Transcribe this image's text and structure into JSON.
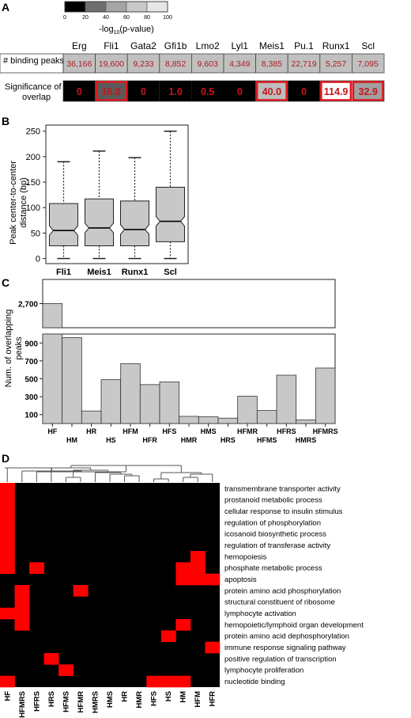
{
  "panel_labels": {
    "a": "A",
    "b": "B",
    "c": "C",
    "d": "D"
  },
  "colorbar": {
    "ticks": [
      "0",
      "20",
      "40",
      "60",
      "80",
      "100"
    ],
    "shades": [
      "#000000",
      "#6e6e6e",
      "#a5a5a5",
      "#c8c8c8",
      "#e6e6e6",
      "#ffffff"
    ],
    "label_prefix": "-log",
    "label_sub": "10",
    "label_suffix": "(p-value)"
  },
  "table": {
    "row1_label": "# binding peaks",
    "row2_label_line1": "Significance of",
    "row2_label_line2": "overlap",
    "columns": [
      {
        "tf": "Erg",
        "peaks": "36,166",
        "sig": "0",
        "fill": "#000000",
        "highlight": false
      },
      {
        "tf": "Fli1",
        "peaks": "19,600",
        "sig": "16.8",
        "fill": "#5a5a5a",
        "highlight": true
      },
      {
        "tf": "Gata2",
        "peaks": "9,233",
        "sig": "0",
        "fill": "#000000",
        "highlight": false
      },
      {
        "tf": "Gfi1b",
        "peaks": "8,852",
        "sig": "1.0",
        "fill": "#000000",
        "highlight": false
      },
      {
        "tf": "Lmo2",
        "peaks": "9,603",
        "sig": "0.5",
        "fill": "#000000",
        "highlight": false
      },
      {
        "tf": "Lyl1",
        "peaks": "4,349",
        "sig": "0",
        "fill": "#000000",
        "highlight": false
      },
      {
        "tf": "Meis1",
        "peaks": "8,385",
        "sig": "40.0",
        "fill": "#bdbdbd",
        "highlight": true
      },
      {
        "tf": "Pu.1",
        "peaks": "22,719",
        "sig": "0",
        "fill": "#000000",
        "highlight": false
      },
      {
        "tf": "Runx1",
        "peaks": "5,257",
        "sig": "114.9",
        "fill": "#ffffff",
        "highlight": true
      },
      {
        "tf": "Scl",
        "peaks": "7,095",
        "sig": "32.9",
        "fill": "#a0a0a0",
        "highlight": true
      }
    ]
  },
  "chart_data": [
    {
      "panel": "B",
      "type": "box",
      "ylabel_line1": "Peak center-to-center",
      "ylabel_line2": "distance (bp)",
      "categories": [
        "Fli1",
        "Meis1",
        "Runx1",
        "Scl"
      ],
      "ylim": [
        0,
        250
      ],
      "yticks": [
        0,
        50,
        100,
        150,
        200,
        250
      ],
      "boxes": [
        {
          "name": "Fli1",
          "min": 0,
          "q1": 25,
          "median": 55,
          "q3": 108,
          "max": 190
        },
        {
          "name": "Meis1",
          "min": 0,
          "q1": 25,
          "median": 60,
          "q3": 117,
          "max": 211
        },
        {
          "name": "Runx1",
          "min": 0,
          "q1": 25,
          "median": 57,
          "q3": 113,
          "max": 198
        },
        {
          "name": "Scl",
          "min": 0,
          "q1": 33,
          "median": 73,
          "q3": 140,
          "max": 250
        }
      ]
    },
    {
      "panel": "C",
      "type": "bar",
      "ylabel_line1": "Num. of overlapping",
      "ylabel_line2": "peaks",
      "categories": [
        "HF",
        "HM",
        "HR",
        "HS",
        "HFM",
        "HFR",
        "HFS",
        "HMR",
        "HMS",
        "HRS",
        "HFMR",
        "HFMS",
        "HFRS",
        "HMRS",
        "HFMRS"
      ],
      "values": [
        2700,
        960,
        140,
        490,
        670,
        435,
        465,
        80,
        75,
        60,
        305,
        145,
        540,
        40,
        620
      ],
      "top_ticks": [
        "2,700"
      ],
      "bottom_ylim": [
        0,
        1000
      ],
      "bottom_yticks": [
        100,
        300,
        500,
        700,
        900
      ]
    },
    {
      "panel": "D",
      "type": "heatmap",
      "columns": [
        "HF",
        "HFMRS",
        "HFRS",
        "HRS",
        "HFMS",
        "HFMR",
        "HMRS",
        "HMS",
        "HR",
        "HMR",
        "HFS",
        "HS",
        "HM",
        "HFM",
        "HFR"
      ],
      "rows": [
        "transmembrane transporter activity",
        "prostanoid metabolic process",
        "cellular response to insulin stimulus",
        "regulation of phosphorylation",
        "icosanoid biosynthetic process",
        "regulation of transferase activity",
        "hemopoiesis",
        "phosphate metabolic process",
        "apoptosis",
        "protein amino acid phosphorylation",
        "structural constituent of ribosome",
        "lymphocyte activation",
        "hemopoietic/lymphoid organ development",
        "protein amino acid dephosphorylation",
        "immune response signaling pathway",
        "positive regulation of transcription",
        "lymphocyte proliferation",
        "nucleotide binding"
      ],
      "matrix": [
        [
          1,
          0,
          0,
          0,
          0,
          0,
          0,
          0,
          0,
          0,
          0,
          0,
          0,
          0,
          0
        ],
        [
          1,
          0,
          0,
          0,
          0,
          0,
          0,
          0,
          0,
          0,
          0,
          0,
          0,
          0,
          0
        ],
        [
          1,
          0,
          0,
          0,
          0,
          0,
          0,
          0,
          0,
          0,
          0,
          0,
          0,
          0,
          0
        ],
        [
          1,
          0,
          0,
          0,
          0,
          0,
          0,
          0,
          0,
          0,
          0,
          0,
          0,
          0,
          0
        ],
        [
          1,
          0,
          0,
          0,
          0,
          0,
          0,
          0,
          0,
          0,
          0,
          0,
          0,
          0,
          0
        ],
        [
          1,
          0,
          0,
          0,
          0,
          0,
          0,
          0,
          0,
          0,
          0,
          0,
          0,
          0,
          0
        ],
        [
          1,
          0,
          0,
          0,
          0,
          0,
          0,
          0,
          0,
          0,
          0,
          0,
          0,
          1,
          0
        ],
        [
          1,
          0,
          1,
          0,
          0,
          0,
          0,
          0,
          0,
          0,
          0,
          0,
          1,
          1,
          0
        ],
        [
          0,
          0,
          0,
          0,
          0,
          0,
          0,
          0,
          0,
          0,
          0,
          0,
          1,
          1,
          1
        ],
        [
          0,
          1,
          0,
          0,
          0,
          1,
          0,
          0,
          0,
          0,
          0,
          0,
          0,
          0,
          0
        ],
        [
          0,
          1,
          0,
          0,
          0,
          0,
          0,
          0,
          0,
          0,
          0,
          0,
          0,
          0,
          0
        ],
        [
          1,
          1,
          0,
          0,
          0,
          0,
          0,
          0,
          0,
          0,
          0,
          0,
          0,
          0,
          0
        ],
        [
          0,
          1,
          0,
          0,
          0,
          0,
          0,
          0,
          0,
          0,
          0,
          0,
          1,
          0,
          0
        ],
        [
          0,
          0,
          0,
          0,
          0,
          0,
          0,
          0,
          0,
          0,
          0,
          1,
          0,
          0,
          0
        ],
        [
          0,
          0,
          0,
          0,
          0,
          0,
          0,
          0,
          0,
          0,
          0,
          0,
          0,
          0,
          1
        ],
        [
          0,
          0,
          0,
          1,
          0,
          0,
          0,
          0,
          0,
          0,
          0,
          0,
          0,
          0,
          0
        ],
        [
          0,
          0,
          0,
          0,
          1,
          0,
          0,
          0,
          0,
          0,
          0,
          0,
          0,
          0,
          0
        ],
        [
          1,
          0,
          0,
          0,
          0,
          0,
          0,
          0,
          0,
          0,
          1,
          1,
          1,
          0,
          0
        ]
      ],
      "on_color": "#ff0000",
      "off_color": "#000000"
    }
  ],
  "colors": {
    "highlight_border": "#e0181f",
    "sig_text": "#c8141a",
    "peaks_text": "#b11a20",
    "table_cell": "#c0c0c0",
    "bar_fill": "#c8c8c8"
  }
}
